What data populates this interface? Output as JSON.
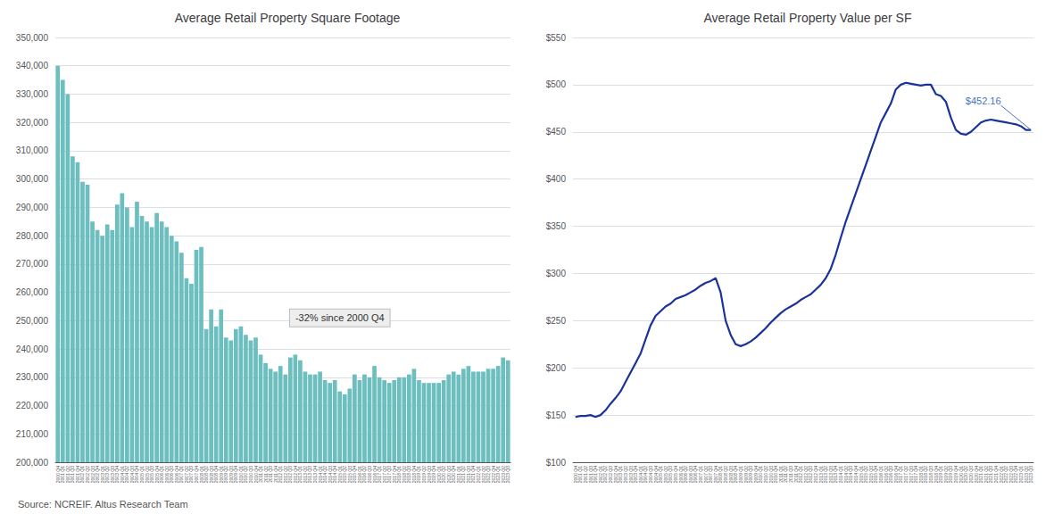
{
  "chart_data": [
    {
      "type": "bar",
      "title": "Average Retail Property Square Footage",
      "color": "#6dbfbf",
      "grid": true,
      "categories": [
        "2000 Q4",
        "2001 Q1",
        "2001 Q2",
        "2001 Q3",
        "2001 Q4",
        "2002 Q1",
        "2002 Q2",
        "2002 Q3",
        "2002 Q4",
        "2003 Q1",
        "2003 Q2",
        "2003 Q3",
        "2003 Q4",
        "2004 Q1",
        "2004 Q2",
        "2004 Q3",
        "2004 Q4",
        "2005 Q1",
        "2005 Q2",
        "2005 Q3",
        "2005 Q4",
        "2006 Q1",
        "2006 Q2",
        "2006 Q3",
        "2006 Q4",
        "2007 Q1",
        "2007 Q2",
        "2007 Q3",
        "2007 Q4",
        "2008 Q1",
        "2008 Q2",
        "2008 Q3",
        "2008 Q4",
        "2009 Q1",
        "2009 Q2",
        "2009 Q3",
        "2009 Q4",
        "2010 Q1",
        "2010 Q2",
        "2010 Q3",
        "2010 Q4",
        "2011 Q1",
        "2011 Q2",
        "2011 Q3",
        "2011 Q4",
        "2012 Q1",
        "2012 Q2",
        "2012 Q3",
        "2012 Q4",
        "2013 Q1",
        "2013 Q2",
        "2013 Q3",
        "2013 Q4",
        "2014 Q1",
        "2014 Q2",
        "2014 Q3",
        "2014 Q4",
        "2015 Q1",
        "2015 Q2",
        "2015 Q3",
        "2015 Q4",
        "2016 Q1",
        "2016 Q2",
        "2016 Q3",
        "2016 Q4",
        "2017 Q1",
        "2017 Q2",
        "2017 Q3",
        "2017 Q4",
        "2018 Q1",
        "2018 Q2",
        "2018 Q3",
        "2018 Q4",
        "2019 Q1",
        "2019 Q2",
        "2019 Q3",
        "2019 Q4",
        "2020 Q1",
        "2020 Q2",
        "2020 Q3",
        "2020 Q4",
        "2021 Q1",
        "2021 Q2",
        "2021 Q3",
        "2021 Q4",
        "2022 Q1",
        "2022 Q2",
        "2022 Q3",
        "2022 Q4",
        "2023 Q1",
        "2023 Q2",
        "2023 Q3"
      ],
      "values": [
        340000,
        335000,
        330000,
        308000,
        306000,
        299000,
        298000,
        285000,
        282000,
        280000,
        284000,
        282000,
        291000,
        295000,
        290000,
        283000,
        292000,
        287000,
        285000,
        283000,
        288000,
        285000,
        283000,
        280000,
        278000,
        274000,
        265000,
        263000,
        275000,
        276000,
        247000,
        254000,
        248000,
        254000,
        244000,
        243000,
        247000,
        248000,
        245000,
        243000,
        244000,
        238000,
        235000,
        233000,
        232000,
        234000,
        231000,
        237000,
        238000,
        236000,
        232000,
        231000,
        231000,
        232000,
        229000,
        228000,
        229000,
        225000,
        224000,
        226000,
        231000,
        229000,
        231000,
        230000,
        234000,
        230000,
        229000,
        228000,
        229000,
        230000,
        230000,
        231000,
        233000,
        229000,
        228000,
        228000,
        228000,
        228000,
        229000,
        231000,
        232000,
        231000,
        233000,
        234000,
        232000,
        232000,
        232000,
        233000,
        233000,
        234000,
        237000,
        236000
      ],
      "ylim": [
        200000,
        350000
      ],
      "yticks": [
        {
          "value": 200000,
          "label": "200,000"
        },
        {
          "value": 210000,
          "label": "210,000"
        },
        {
          "value": 220000,
          "label": "220,000"
        },
        {
          "value": 230000,
          "label": "230,000"
        },
        {
          "value": 240000,
          "label": "240,000"
        },
        {
          "value": 250000,
          "label": "250,000"
        },
        {
          "value": 260000,
          "label": "260,000"
        },
        {
          "value": 270000,
          "label": "270,000"
        },
        {
          "value": 280000,
          "label": "280,000"
        },
        {
          "value": 290000,
          "label": "290,000"
        },
        {
          "value": 300000,
          "label": "300,000"
        },
        {
          "value": 310000,
          "label": "310,000"
        },
        {
          "value": 320000,
          "label": "320,000"
        },
        {
          "value": 330000,
          "label": "330,000"
        },
        {
          "value": 340000,
          "label": "340,000"
        },
        {
          "value": 350000,
          "label": "350,000"
        }
      ],
      "annotations": [
        {
          "text": "-32% since 2000 Q4",
          "x": "2015 Q1",
          "y": 251000
        }
      ]
    },
    {
      "type": "line",
      "title": "Average Retail Property Value per SF",
      "color": "#1a3399",
      "grid": true,
      "categories": [
        "2000 Q4",
        "2001 Q1",
        "2001 Q2",
        "2001 Q3",
        "2001 Q4",
        "2002 Q1",
        "2002 Q2",
        "2002 Q3",
        "2002 Q4",
        "2003 Q1",
        "2003 Q2",
        "2003 Q3",
        "2003 Q4",
        "2004 Q1",
        "2004 Q2",
        "2004 Q3",
        "2004 Q4",
        "2005 Q1",
        "2005 Q2",
        "2005 Q3",
        "2005 Q4",
        "2006 Q1",
        "2006 Q2",
        "2006 Q3",
        "2006 Q4",
        "2007 Q1",
        "2007 Q2",
        "2007 Q3",
        "2007 Q4",
        "2008 Q1",
        "2008 Q2",
        "2008 Q3",
        "2008 Q4",
        "2009 Q1",
        "2009 Q2",
        "2009 Q3",
        "2009 Q4",
        "2010 Q1",
        "2010 Q2",
        "2010 Q3",
        "2010 Q4",
        "2011 Q1",
        "2011 Q2",
        "2011 Q3",
        "2011 Q4",
        "2012 Q1",
        "2012 Q2",
        "2012 Q3",
        "2012 Q4",
        "2013 Q1",
        "2013 Q2",
        "2013 Q3",
        "2013 Q4",
        "2014 Q1",
        "2014 Q2",
        "2014 Q3",
        "2014 Q4",
        "2015 Q1",
        "2015 Q2",
        "2015 Q3",
        "2015 Q4",
        "2016 Q1",
        "2016 Q2",
        "2016 Q3",
        "2016 Q4",
        "2017 Q1",
        "2017 Q2",
        "2017 Q3",
        "2017 Q4",
        "2018 Q1",
        "2018 Q2",
        "2018 Q3",
        "2018 Q4",
        "2019 Q1",
        "2019 Q2",
        "2019 Q3",
        "2019 Q4",
        "2020 Q1",
        "2020 Q2",
        "2020 Q3",
        "2020 Q4",
        "2021 Q1",
        "2021 Q2",
        "2021 Q3",
        "2021 Q4",
        "2022 Q1",
        "2022 Q2",
        "2022 Q3",
        "2022 Q4",
        "2023 Q1",
        "2023 Q2",
        "2023 Q3"
      ],
      "values": [
        148,
        149,
        149,
        150,
        148,
        150,
        155,
        162,
        168,
        175,
        185,
        195,
        205,
        215,
        230,
        245,
        255,
        260,
        265,
        268,
        273,
        275,
        277,
        280,
        283,
        287,
        290,
        292,
        295,
        280,
        250,
        235,
        225,
        223,
        225,
        228,
        232,
        237,
        242,
        248,
        253,
        258,
        262,
        265,
        268,
        272,
        275,
        278,
        283,
        288,
        295,
        305,
        320,
        338,
        355,
        370,
        385,
        400,
        415,
        430,
        445,
        460,
        470,
        480,
        495,
        500,
        502,
        501,
        500,
        499,
        500,
        500,
        490,
        488,
        482,
        465,
        452,
        448,
        447,
        450,
        455,
        460,
        462,
        463,
        462,
        461,
        460,
        459,
        458,
        456,
        452,
        452
      ],
      "ylim": [
        100,
        550
      ],
      "yticks": [
        {
          "value": 100,
          "label": "$100"
        },
        {
          "value": 150,
          "label": "$150"
        },
        {
          "value": 200,
          "label": "$200"
        },
        {
          "value": 250,
          "label": "$250"
        },
        {
          "value": 300,
          "label": "$300"
        },
        {
          "value": 350,
          "label": "$350"
        },
        {
          "value": 400,
          "label": "$400"
        },
        {
          "value": 450,
          "label": "$450"
        },
        {
          "value": 500,
          "label": "$500"
        },
        {
          "value": 550,
          "label": "$550"
        }
      ],
      "annotations": [
        {
          "text": "$452.16",
          "x": "2022 Q1",
          "y": 478,
          "point": {
            "x": "2023 Q3",
            "y": 452
          }
        }
      ]
    }
  ],
  "source": "Source: NCREIF. Altus Research Team"
}
